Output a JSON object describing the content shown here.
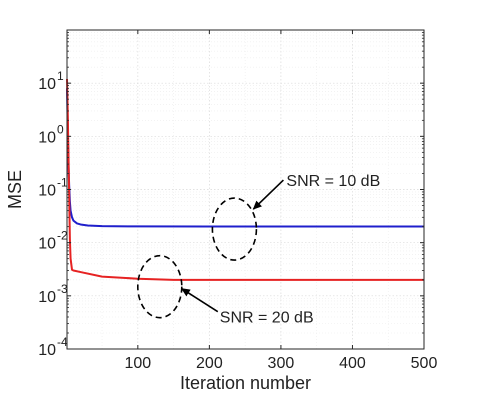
{
  "chart_data": {
    "type": "line",
    "xlabel": "Iteration number",
    "ylabel": "MSE",
    "xlim": [
      1,
      500
    ],
    "ylim": [
      0.0001,
      100
    ],
    "yscale": "log",
    "grid": true,
    "x_ticks": [
      {
        "value": 100,
        "label": "100"
      },
      {
        "value": 200,
        "label": "200"
      },
      {
        "value": 300,
        "label": "300"
      },
      {
        "value": 400,
        "label": "400"
      },
      {
        "value": 500,
        "label": "500"
      }
    ],
    "y_ticks": [
      {
        "value": 10,
        "base": "10",
        "exp": "1"
      },
      {
        "value": 1,
        "base": "10",
        "exp": "0"
      },
      {
        "value": 0.1,
        "base": "10",
        "exp": "-1"
      },
      {
        "value": 0.01,
        "base": "10",
        "exp": "-2"
      },
      {
        "value": 0.001,
        "base": "10",
        "exp": "-3"
      },
      {
        "value": 0.0001,
        "base": "10",
        "exp": "-4"
      }
    ],
    "series": [
      {
        "color": "#1f1fcc",
        "x": [
          1,
          2,
          3,
          4,
          5,
          6,
          8,
          10,
          15,
          20,
          30,
          50,
          100,
          200,
          300,
          400,
          500
        ],
        "y": [
          8,
          1.5,
          0.3,
          0.12,
          0.06,
          0.04,
          0.03,
          0.026,
          0.023,
          0.022,
          0.021,
          0.0205,
          0.0202,
          0.0201,
          0.0201,
          0.0201,
          0.0201
        ]
      },
      {
        "color": "#e62222",
        "x": [
          1,
          2,
          3,
          4,
          5,
          6,
          8,
          10,
          20,
          50,
          100,
          150,
          200,
          300,
          400,
          500
        ],
        "y": [
          12,
          3,
          0.5,
          0.08,
          0.012,
          0.005,
          0.0031,
          0.003,
          0.0028,
          0.0023,
          0.0021,
          0.002,
          0.002,
          0.002,
          0.002,
          0.002
        ]
      }
    ],
    "annotations": [
      {
        "text": "SNR = 10 dB",
        "target_x": 235,
        "target_y": 0.018
      },
      {
        "text": "SNR = 20 dB",
        "target_x": 72,
        "target_y": 0.0025
      }
    ]
  }
}
